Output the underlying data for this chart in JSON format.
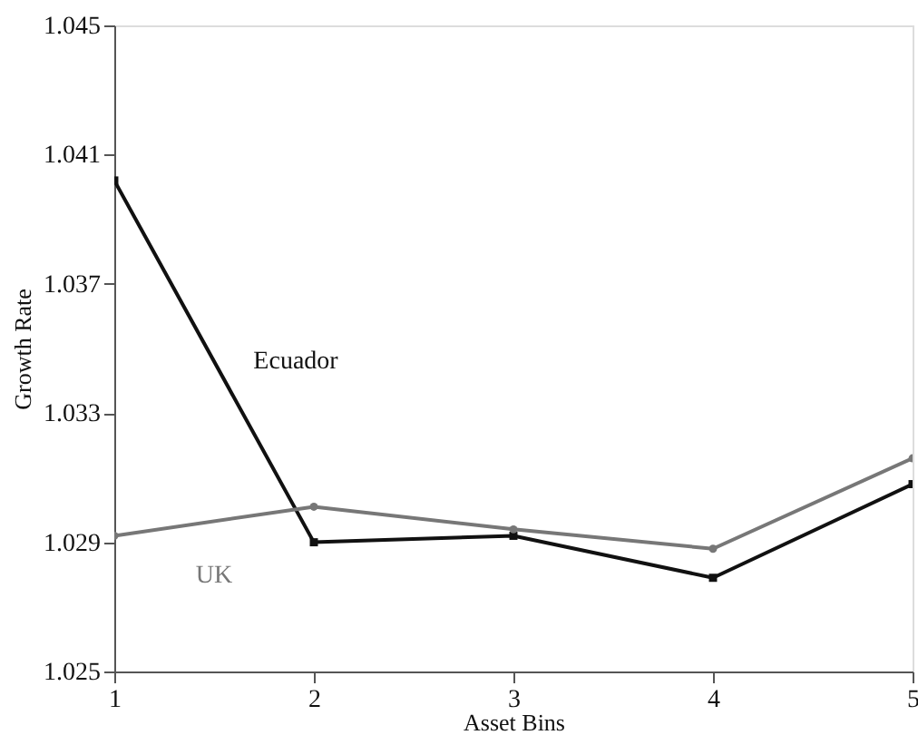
{
  "chart_data": {
    "type": "line",
    "xlabel": "Asset Bins",
    "ylabel": "Growth Rate",
    "x": [
      1,
      2,
      3,
      4,
      5
    ],
    "xlim": [
      1,
      5
    ],
    "xticks": [
      1,
      2,
      3,
      4,
      5
    ],
    "ylim": [
      1.025,
      1.045
    ],
    "yticks": [
      1.025,
      1.029,
      1.033,
      1.037,
      1.041,
      1.045
    ],
    "series": [
      {
        "name": "Ecuador",
        "color": "#111111",
        "marker": "square",
        "values": [
          1.0402,
          1.029,
          1.0292,
          1.0279,
          1.0308
        ]
      },
      {
        "name": "UK",
        "color": "#777777",
        "marker": "circle",
        "values": [
          1.0292,
          1.0301,
          1.0294,
          1.0288,
          1.0316
        ]
      }
    ],
    "grid": false,
    "line_style": "solid"
  }
}
